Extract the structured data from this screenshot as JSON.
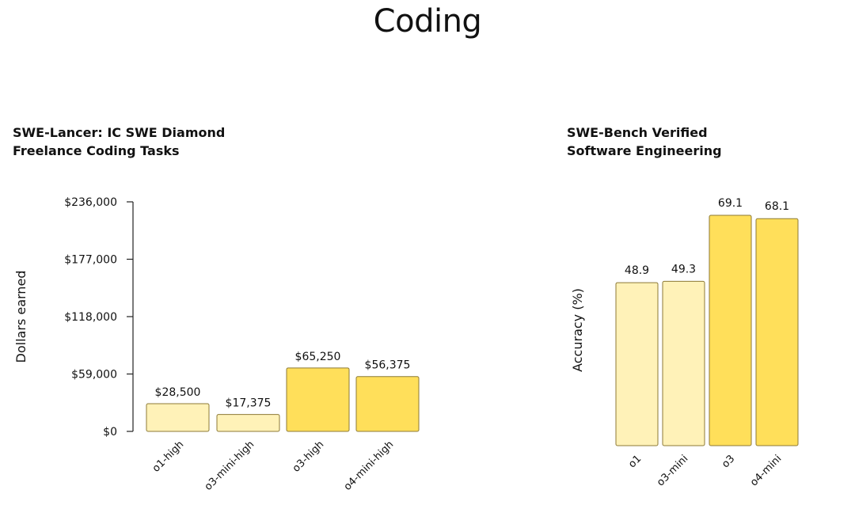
{
  "page": {
    "title": "Coding"
  },
  "chart_data": [
    {
      "type": "bar",
      "title_lines": [
        "SWE-Lancer: IC SWE Diamond",
        "Freelance Coding Tasks"
      ],
      "ylabel": "Dollars earned",
      "xlabel": "",
      "categories": [
        "o1-high",
        "o3-mini-high",
        "o3-high",
        "o4-mini-high"
      ],
      "values": [
        28500,
        17375,
        65250,
        56375
      ],
      "value_labels": [
        "$28,500",
        "$17,375",
        "$65,250",
        "$56,375"
      ],
      "bar_colors": [
        "#fff2b8",
        "#fff2b8",
        "#ffdf5a",
        "#ffdf5a"
      ],
      "ylim": [
        0,
        236000
      ],
      "yticks": [
        0,
        59000,
        118000,
        177000,
        236000
      ],
      "ytick_labels": [
        "$0",
        "$59,000",
        "$118,000",
        "$177,000",
        "$236,000"
      ],
      "grid": false
    },
    {
      "type": "bar",
      "title_lines": [
        "SWE-Bench Verified",
        "Software Engineering"
      ],
      "ylabel": "Accuracy (%)",
      "xlabel": "",
      "categories": [
        "o1",
        "o3-mini",
        "o3",
        "o4-mini"
      ],
      "values": [
        48.9,
        49.3,
        69.1,
        68.1
      ],
      "value_labels": [
        "48.9",
        "49.3",
        "69.1",
        "68.1"
      ],
      "bar_colors": [
        "#fff2b8",
        "#fff2b8",
        "#ffdf5a",
        "#ffdf5a"
      ],
      "ylim": [
        0,
        72
      ],
      "grid": false
    }
  ]
}
